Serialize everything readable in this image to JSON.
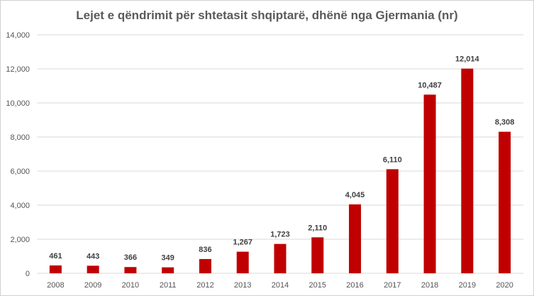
{
  "chart_data": {
    "type": "bar",
    "title": "Lejet e qëndrimit për shtetasit shqiptarë, dhënë nga Gjermania (nr)",
    "xlabel": "",
    "ylabel": "",
    "categories": [
      "2008",
      "2009",
      "2010",
      "2011",
      "2012",
      "2013",
      "2014",
      "2015",
      "2016",
      "2017",
      "2018",
      "2019",
      "2020"
    ],
    "values": [
      461,
      443,
      366,
      349,
      836,
      1267,
      1723,
      2110,
      4045,
      6110,
      10487,
      12014,
      8308
    ],
    "value_labels": [
      "461",
      "443",
      "366",
      "349",
      "836",
      "1,267",
      "1,723",
      "2,110",
      "4,045",
      "6,110",
      "10,487",
      "12,014",
      "8,308"
    ],
    "ylim": [
      0,
      14000
    ],
    "yticks": [
      0,
      2000,
      4000,
      6000,
      8000,
      10000,
      12000,
      14000
    ],
    "ytick_labels": [
      "0",
      "2,000",
      "4,000",
      "6,000",
      "8,000",
      "10,000",
      "12,000",
      "14,000"
    ],
    "grid": true,
    "legend": "none",
    "bar_color": "#c00000",
    "grid_color": "#d9d9d9"
  }
}
